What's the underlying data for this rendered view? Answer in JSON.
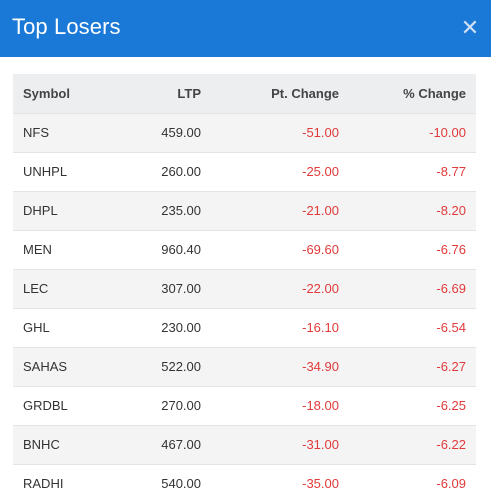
{
  "modal": {
    "title": "Top Losers",
    "close_icon": "close-icon"
  },
  "table": {
    "headers": {
      "symbol": "Symbol",
      "ltp": "LTP",
      "pt_change": "Pt. Change",
      "pct_change": "% Change"
    },
    "rows": [
      {
        "symbol": "NFS",
        "ltp": "459.00",
        "pt_change": "-51.00",
        "pct_change": "-10.00"
      },
      {
        "symbol": "UNHPL",
        "ltp": "260.00",
        "pt_change": "-25.00",
        "pct_change": "-8.77"
      },
      {
        "symbol": "DHPL",
        "ltp": "235.00",
        "pt_change": "-21.00",
        "pct_change": "-8.20"
      },
      {
        "symbol": "MEN",
        "ltp": "960.40",
        "pt_change": "-69.60",
        "pct_change": "-6.76"
      },
      {
        "symbol": "LEC",
        "ltp": "307.00",
        "pt_change": "-22.00",
        "pct_change": "-6.69"
      },
      {
        "symbol": "GHL",
        "ltp": "230.00",
        "pt_change": "-16.10",
        "pct_change": "-6.54"
      },
      {
        "symbol": "SAHAS",
        "ltp": "522.00",
        "pt_change": "-34.90",
        "pct_change": "-6.27"
      },
      {
        "symbol": "GRDBL",
        "ltp": "270.00",
        "pt_change": "-18.00",
        "pct_change": "-6.25"
      },
      {
        "symbol": "BNHC",
        "ltp": "467.00",
        "pt_change": "-31.00",
        "pct_change": "-6.22"
      },
      {
        "symbol": "RADHI",
        "ltp": "540.00",
        "pt_change": "-35.00",
        "pct_change": "-6.09"
      }
    ]
  },
  "colors": {
    "header_bg": "#1a78d6",
    "negative": "#e03a3a",
    "row_alt": "#f4f4f5"
  }
}
